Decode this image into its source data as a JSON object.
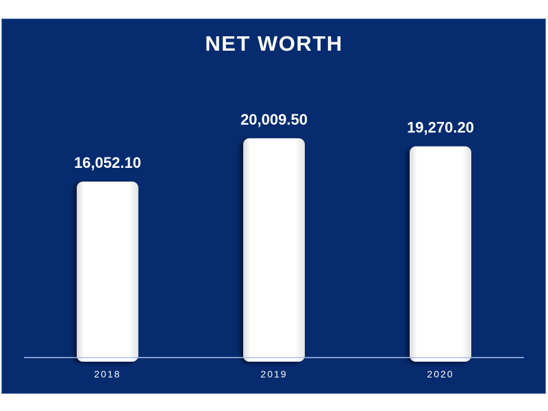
{
  "chart_data": {
    "type": "bar",
    "title": "NET WORTH",
    "categories": [
      "2018",
      "2019",
      "2020"
    ],
    "values": [
      16052.1,
      20009.5,
      19270.2
    ],
    "value_labels": [
      "16,052.10",
      "20,009.50",
      "19,270.20"
    ],
    "ylim": [
      0,
      25000
    ],
    "grid": false,
    "legend": "none",
    "colors": {
      "background": "#062b6f",
      "bar": "#ffffff",
      "text": "#ffffff",
      "axis": "#a9c0e8"
    }
  }
}
